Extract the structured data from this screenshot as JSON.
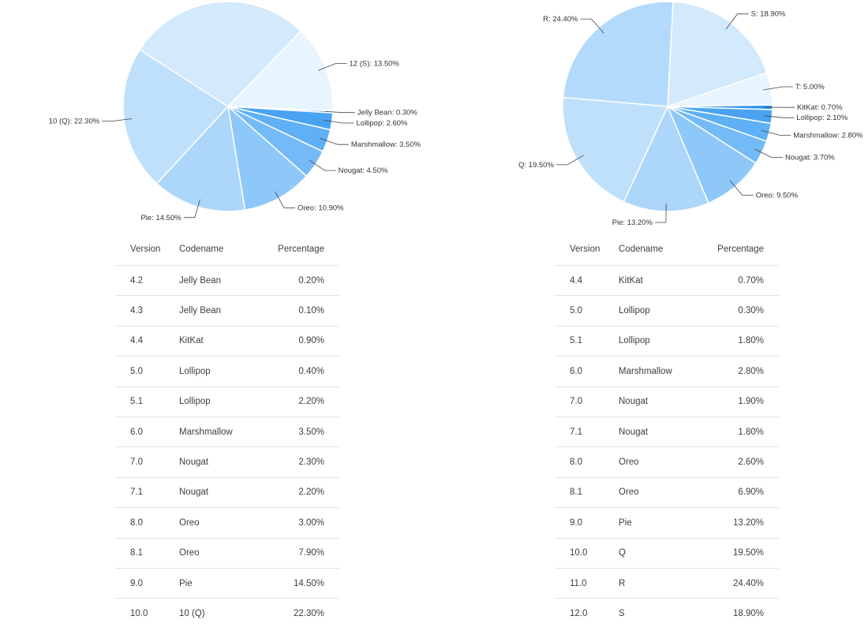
{
  "chart_data": [
    {
      "type": "pie",
      "slices": [
        {
          "label": "12 (S)",
          "value": 13.5,
          "color": "#e8f4fe"
        },
        {
          "label": "Jelly Bean",
          "value": 0.3,
          "color": "#2f94f0"
        },
        {
          "label": "Lollipop",
          "value": 2.6,
          "color": "#49a3f2"
        },
        {
          "label": "Marshmallow",
          "value": 3.5,
          "color": "#5fb0f4"
        },
        {
          "label": "Nougat",
          "value": 4.5,
          "color": "#74baf6"
        },
        {
          "label": "Oreo",
          "value": 10.9,
          "color": "#8ec8f8"
        },
        {
          "label": "Pie",
          "value": 14.5,
          "color": "#acd6fa"
        },
        {
          "label": "10 (Q)",
          "value": 22.3,
          "color": "#bfe0fb"
        },
        {
          "label": "",
          "value": 28.2,
          "color": "#d3e9fc"
        }
      ],
      "label_format": "{label}: {value}%"
    },
    {
      "type": "pie",
      "slices": [
        {
          "label": "S",
          "value": 18.9,
          "color": "#d3e9fc"
        },
        {
          "label": "T",
          "value": 5.0,
          "color": "#e8f4fe"
        },
        {
          "label": "KitKat",
          "value": 0.7,
          "color": "#2f94f0"
        },
        {
          "label": "Lollipop",
          "value": 2.1,
          "color": "#49a3f2"
        },
        {
          "label": "Marshmallow",
          "value": 2.8,
          "color": "#5fb0f4"
        },
        {
          "label": "Nougat",
          "value": 3.7,
          "color": "#74baf6"
        },
        {
          "label": "Oreo",
          "value": 9.5,
          "color": "#8ec8f8"
        },
        {
          "label": "Pie",
          "value": 13.2,
          "color": "#acd6fa"
        },
        {
          "label": "Q",
          "value": 19.5,
          "color": "#bfe0fb"
        },
        {
          "label": "R",
          "value": 24.4,
          "color": "#b3dafb"
        }
      ],
      "label_format": "{label}: {value}%"
    }
  ],
  "tables": {
    "left": {
      "headers": [
        "Version",
        "Codename",
        "Percentage"
      ],
      "rows": [
        [
          "4.2",
          "Jelly Bean",
          "0.20%"
        ],
        [
          "4.3",
          "Jelly Bean",
          "0.10%"
        ],
        [
          "4.4",
          "KitKat",
          "0.90%"
        ],
        [
          "5.0",
          "Lollipop",
          "0.40%"
        ],
        [
          "5.1",
          "Lollipop",
          "2.20%"
        ],
        [
          "6.0",
          "Marshmallow",
          "3.50%"
        ],
        [
          "7.0",
          "Nougat",
          "2.30%"
        ],
        [
          "7.1",
          "Nougat",
          "2.20%"
        ],
        [
          "8.0",
          "Oreo",
          "3.00%"
        ],
        [
          "8.1",
          "Oreo",
          "7.90%"
        ],
        [
          "9.0",
          "Pie",
          "14.50%"
        ],
        [
          "10.0",
          "10 (Q)",
          "22.30%"
        ]
      ]
    },
    "right": {
      "headers": [
        "Version",
        "Codename",
        "Percentage"
      ],
      "rows": [
        [
          "4.4",
          "KitKat",
          "0.70%"
        ],
        [
          "5.0",
          "Lollipop",
          "0.30%"
        ],
        [
          "5.1",
          "Lollipop",
          "1.80%"
        ],
        [
          "6.0",
          "Marshmallow",
          "2.80%"
        ],
        [
          "7.0",
          "Nougat",
          "1.90%"
        ],
        [
          "7.1",
          "Nougat",
          "1.80%"
        ],
        [
          "8.0",
          "Oreo",
          "2.60%"
        ],
        [
          "8.1",
          "Oreo",
          "6.90%"
        ],
        [
          "9.0",
          "Pie",
          "13.20%"
        ],
        [
          "10.0",
          "Q",
          "19.50%"
        ],
        [
          "11.0",
          "R",
          "24.40%"
        ],
        [
          "12.0",
          "S",
          "18.90%"
        ]
      ]
    }
  }
}
